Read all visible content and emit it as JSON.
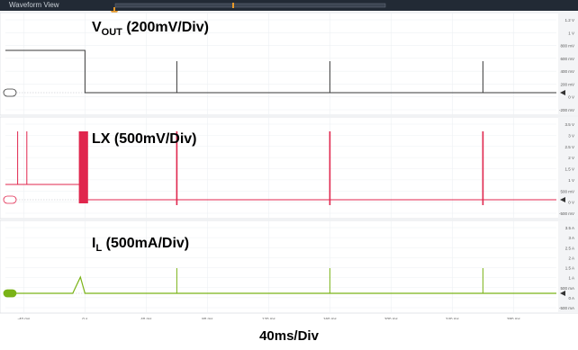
{
  "window": {
    "title": "Waveform View"
  },
  "channels": [
    {
      "id": "vout",
      "label_main": "V",
      "label_sub": "OUT",
      "label_rest": " (200mV/Div)",
      "color": "#3a3a3a",
      "scale": [
        "1.2 V",
        "1 V",
        "800 mV",
        "600 mV",
        "400 mV",
        "200 mV",
        "0 V",
        "-200 mV"
      ]
    },
    {
      "id": "lx",
      "label_main": "LX",
      "label_sub": "",
      "label_rest": " (500mV/Div)",
      "color": "#e0264d",
      "scale": [
        "3.5 V",
        "3 V",
        "2.5 V",
        "2 V",
        "1.5 V",
        "1 V",
        "500 mV",
        "0 V",
        "-500 mV"
      ]
    },
    {
      "id": "il",
      "label_main": "I",
      "label_sub": "L",
      "label_rest": " (500mA/Div)",
      "color": "#7ab317",
      "scale": [
        "3.5 A",
        "3 A",
        "2.5 A",
        "2 A",
        "1.5 A",
        "1 A",
        "500 mA",
        "0 A",
        "-500 mA"
      ]
    }
  ],
  "time_axis": {
    "ticks": [
      "-40 ms",
      "0 s",
      "40 ms",
      "80 ms",
      "120 ms",
      "160 ms",
      "200 ms",
      "240 ms",
      "280 ms"
    ],
    "per_div": "40ms/Div"
  }
}
